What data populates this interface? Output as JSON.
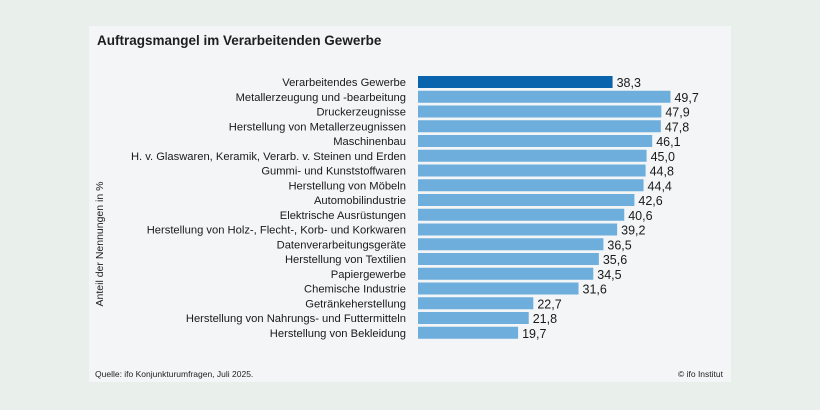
{
  "chart_data": {
    "type": "bar",
    "orientation": "horizontal",
    "title": "Auftragsmangel im Verarbeitenden Gewerbe",
    "xlabel": "",
    "ylabel": "Anteil der Nennungen in %",
    "xlim": [
      0,
      50
    ],
    "grid": false,
    "categories": [
      "Verarbeitendes Gewerbe",
      "Metallerzeugung und -bearbeitung",
      "Druckerzeugnisse",
      "Herstellung von Metallerzeugnissen",
      "Maschinenbau",
      "H. v. Glaswaren, Keramik, Verarb. v. Steinen und Erden",
      "Gummi- und Kunststoffwaren",
      "Herstellung von Möbeln",
      "Automobilindustrie",
      "Elektrische Ausrüstungen",
      "Herstellung von Holz-, Flecht-, Korb- und Korkwaren",
      "Datenverarbeitungsgeräte",
      "Herstellung von Textilien",
      "Papiergewerbe",
      "Chemische Industrie",
      "Getränkeherstellung",
      "Herstellung von Nahrungs- und Futtermitteln",
      "Herstellung von Bekleidung"
    ],
    "values": [
      38.3,
      49.7,
      47.9,
      47.8,
      46.1,
      45.0,
      44.8,
      44.4,
      42.6,
      40.6,
      39.2,
      36.5,
      35.6,
      34.5,
      31.6,
      22.7,
      21.8,
      19.7
    ],
    "value_labels": [
      "38,3",
      "49,7",
      "47,9",
      "47,8",
      "46,1",
      "45,0",
      "44,8",
      "44,4",
      "42,6",
      "40,6",
      "39,2",
      "36,5",
      "35,6",
      "34,5",
      "31,6",
      "22,7",
      "21,8",
      "19,7"
    ],
    "highlight_index": 0,
    "colors": {
      "highlight": "#0a63ad",
      "bar": "#6eaedd"
    }
  },
  "footer": {
    "source": "Quelle: ifo Konjunkturumfragen,  Juli 2025.",
    "credit": "© ifo Institut"
  }
}
